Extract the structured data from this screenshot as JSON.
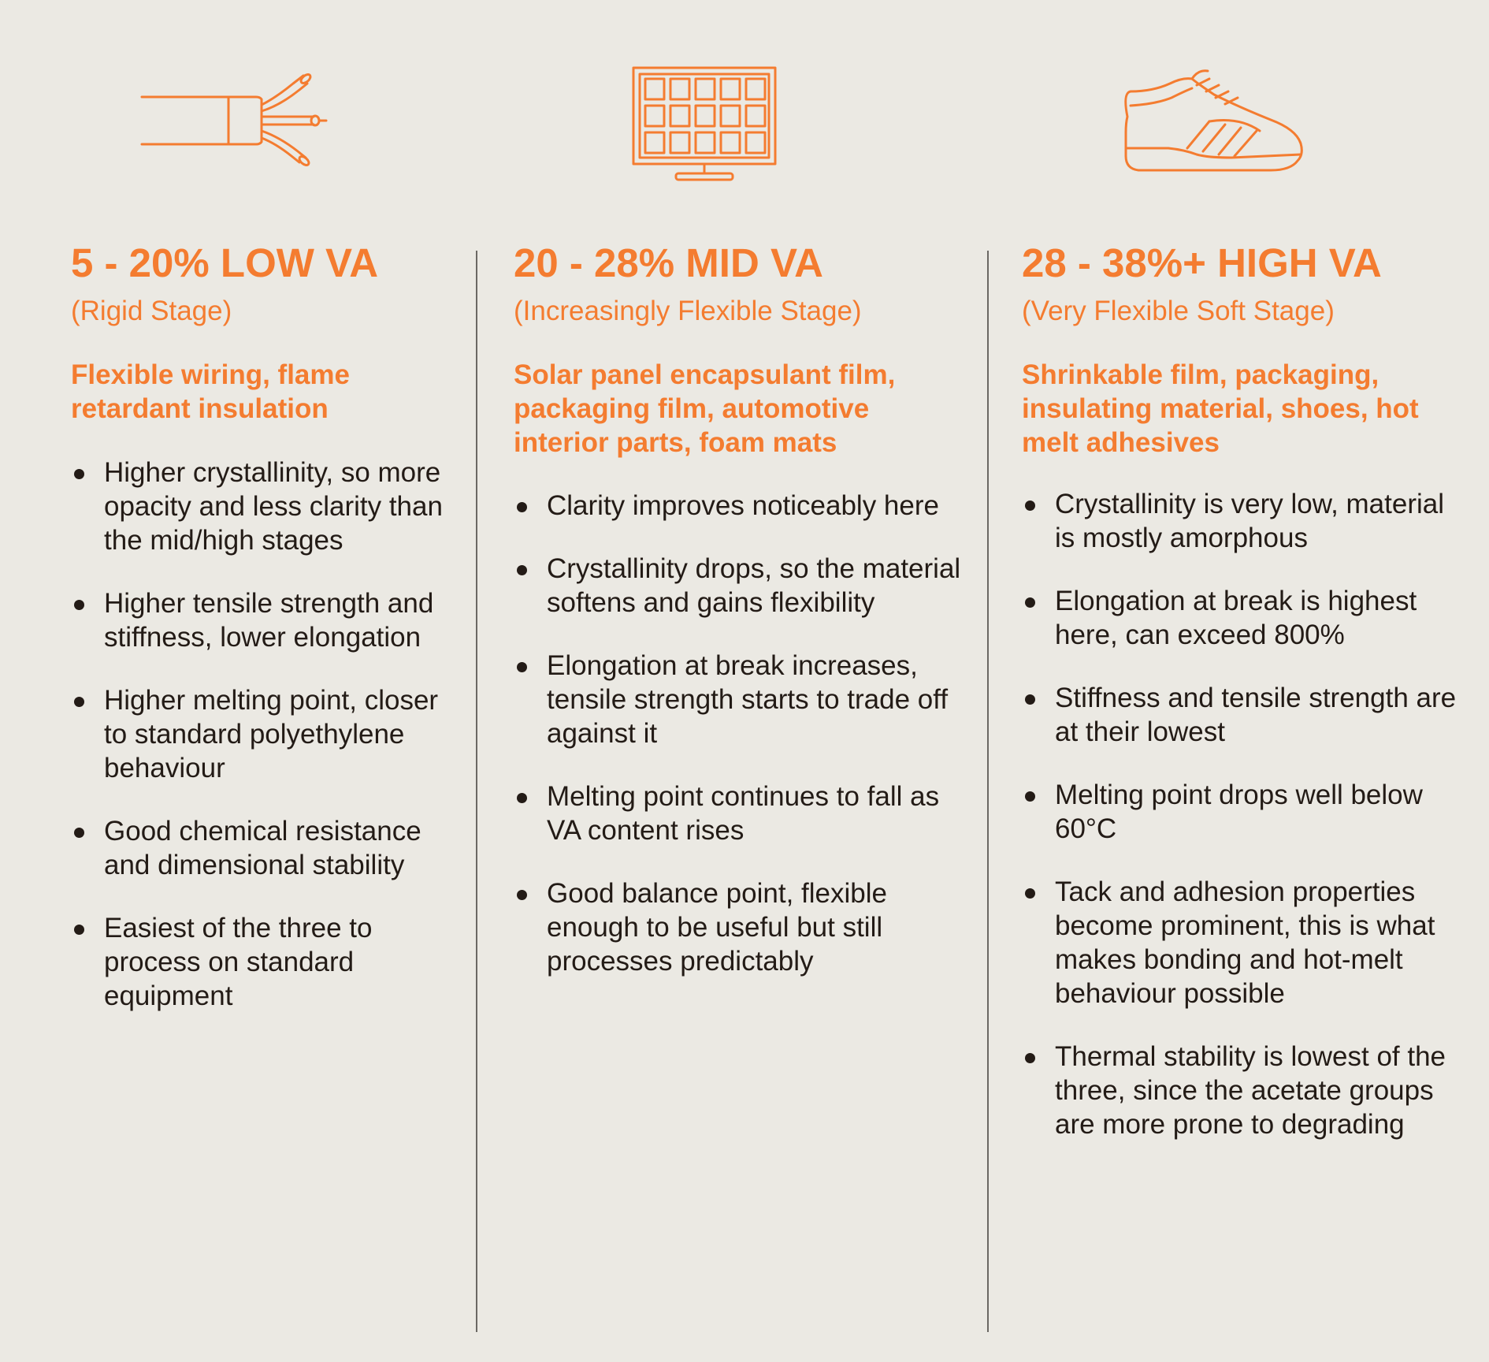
{
  "accent_color": "#f47c30",
  "text_color": "#231b16",
  "background_color": "#ebe9e3",
  "columns": [
    {
      "icon": "cable-wire-icon",
      "heading": "5 - 20% LOW VA",
      "subheading": "(Rigid Stage)",
      "applications": "Flexible wiring, flame retardant insulation",
      "bullets": [
        "Higher crystallinity, so more opacity and less clarity than the mid/high stages",
        "Higher tensile strength and stiffness, lower elongation",
        "Higher melting point, closer to standard polyethylene behaviour",
        "Good chemical resistance and dimensional stability",
        "Easiest of the three to process on standard equipment"
      ]
    },
    {
      "icon": "solar-panel-icon",
      "heading": "20 - 28% MID VA",
      "subheading": "(Increasingly Flexible Stage)",
      "applications": "Solar panel encapsulant film, packaging film, automotive interior parts, foam mats",
      "bullets": [
        "Clarity improves noticeably here",
        "Crystallinity drops, so the material softens and gains flexibility",
        "Elongation at break increases, tensile strength starts to trade off against it",
        "Melting point continues to fall as VA content rises",
        "Good balance point, flexible enough to be useful but still processes predictably"
      ]
    },
    {
      "icon": "sneaker-shoe-icon",
      "heading": "28 - 38%+ HIGH VA",
      "subheading": "(Very Flexible Soft Stage)",
      "applications": "Shrinkable film, packaging, insulating material, shoes, hot melt adhesives",
      "bullets": [
        "Crystallinity is very low, material is mostly amorphous",
        "Elongation at break is highest here, can exceed 800%",
        "Stiffness and tensile strength are at their lowest",
        "Melting point drops well below 60°C",
        "Tack and adhesion properties become prominent, this is what makes bonding and hot-melt behaviour possible",
        "Thermal stability is lowest of the three, since the acetate groups are more prone to degrading"
      ]
    }
  ]
}
